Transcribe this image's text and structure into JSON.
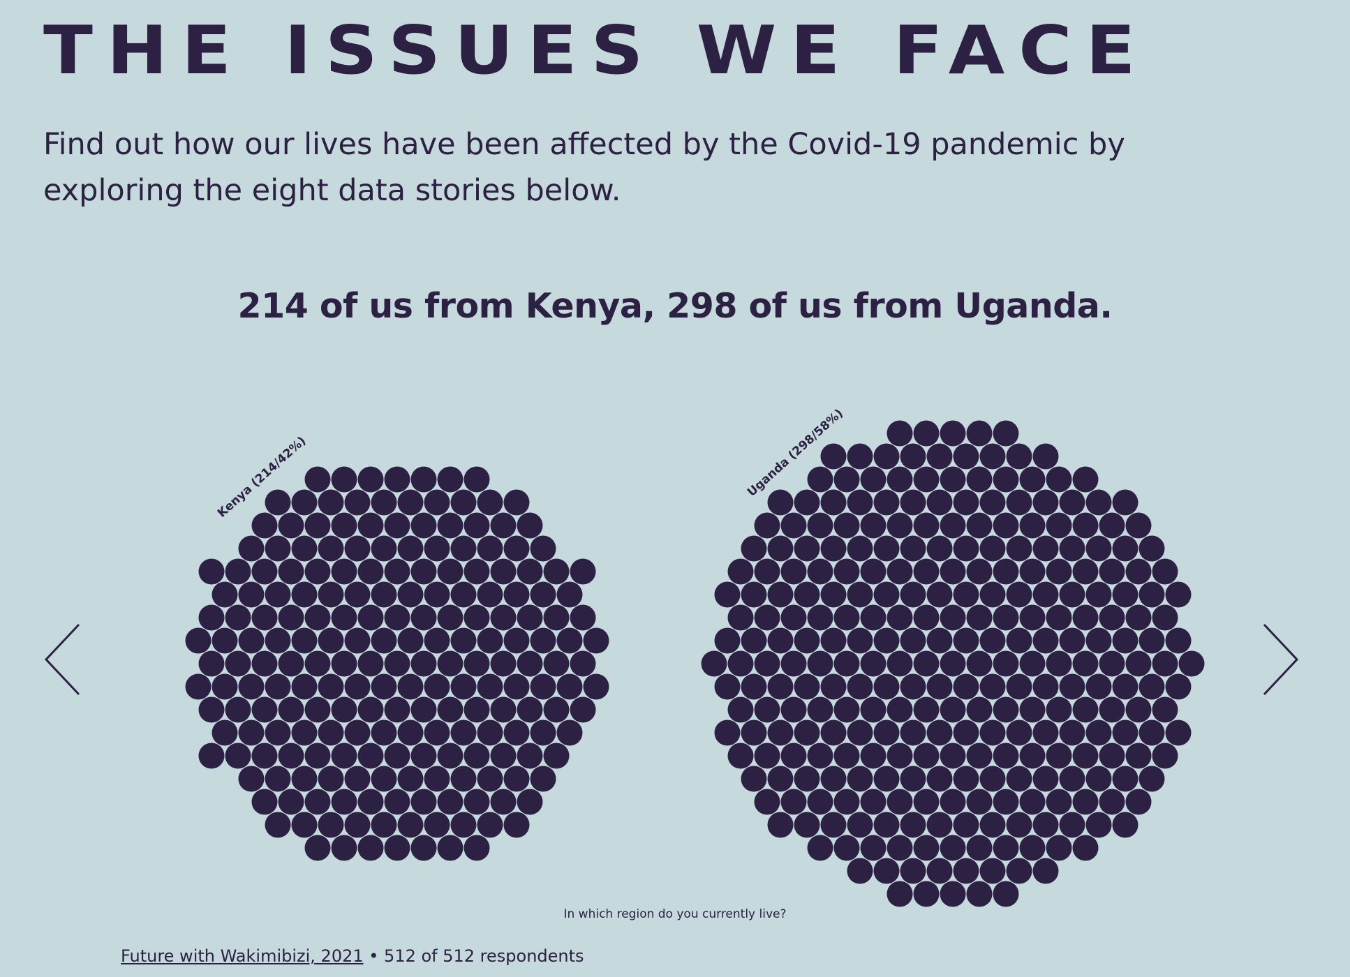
{
  "page": {
    "title": "THE ISSUES WE FACE",
    "intro": "Find out how our lives have been affected by the Covid-19 pandemic by exploring the eight data stories below."
  },
  "nav": {
    "prev_icon": "chevron-left-icon",
    "next_icon": "chevron-right-icon"
  },
  "chart_data": {
    "type": "bubble-cluster",
    "title": "214 of us from Kenya, 298 of us from Uganda.",
    "question": "In which region do you currently live?",
    "series": [
      {
        "name": "Kenya",
        "label": "Kenya (214/42%)",
        "count": 214,
        "percent": 42
      },
      {
        "name": "Uganda",
        "label": "Uganda (298/58%)",
        "count": 298,
        "percent": 58
      }
    ],
    "total": 512,
    "color": "#2c2143"
  },
  "footer": {
    "source_link": "Future with Wakimibizi, 2021",
    "separator": " • ",
    "respondents": "512 of 512 respondents"
  }
}
